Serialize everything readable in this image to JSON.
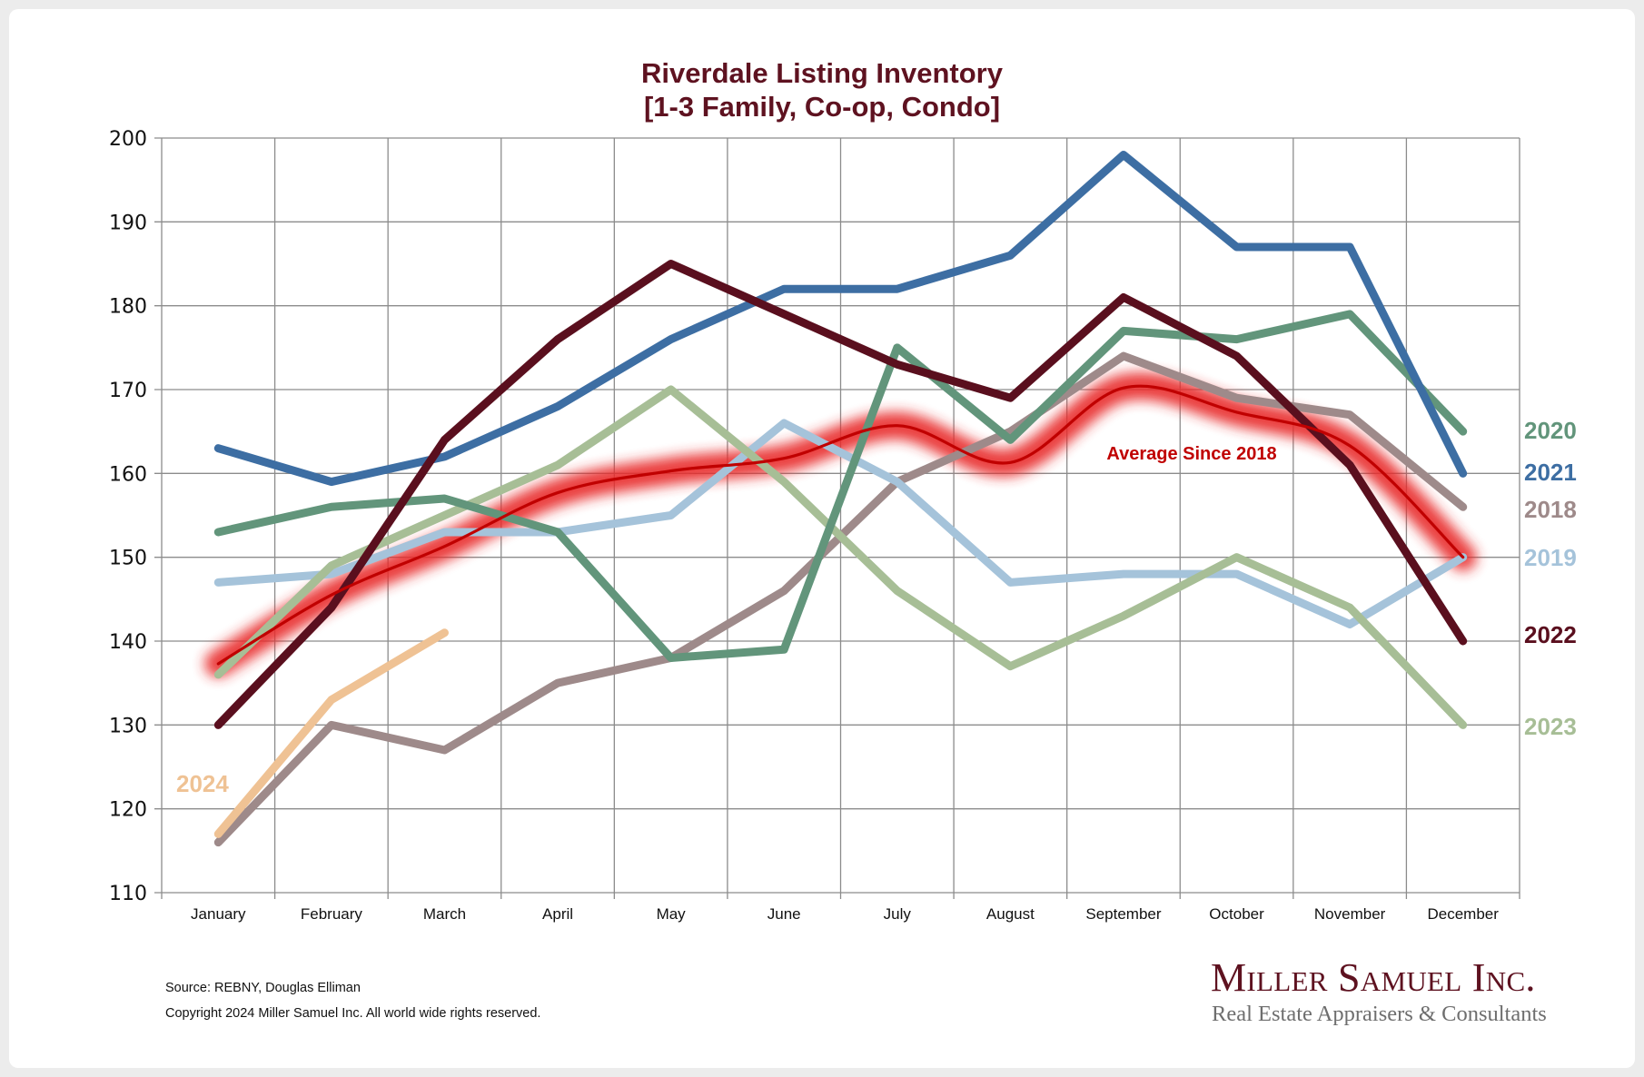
{
  "chart_data": {
    "type": "line",
    "title": "Riverdale Listing Inventory",
    "subtitle": "[1-3 Family, Co-op, Condo]",
    "xlabel": "",
    "ylabel": "",
    "ylim": [
      110,
      200
    ],
    "yticks": [
      110,
      120,
      130,
      140,
      150,
      160,
      170,
      180,
      190,
      200
    ],
    "grid": true,
    "legend": "direct labels at right end of lines",
    "categories": [
      "January",
      "February",
      "March",
      "April",
      "May",
      "June",
      "July",
      "August",
      "September",
      "October",
      "November",
      "December"
    ],
    "series": [
      {
        "name": "2018",
        "color": "#9e8a8a",
        "values": [
          116,
          130,
          127,
          135,
          138,
          146,
          159,
          165,
          174,
          169,
          167,
          156
        ]
      },
      {
        "name": "2019",
        "color": "#a5c3da",
        "values": [
          147,
          148,
          153,
          153,
          155,
          166,
          159,
          147,
          148,
          148,
          142,
          150
        ]
      },
      {
        "name": "2023",
        "color": "#a7be96",
        "values": [
          136,
          149,
          155,
          161,
          170,
          159,
          146,
          137,
          143,
          150,
          144,
          130
        ]
      },
      {
        "name": "2020",
        "color": "#62957b",
        "values": [
          153,
          156,
          157,
          153,
          138,
          139,
          175,
          164,
          177,
          176,
          179,
          165
        ]
      },
      {
        "name": "2021",
        "color": "#3d6ea3",
        "values": [
          163,
          159,
          162,
          168,
          176,
          182,
          182,
          186,
          198,
          187,
          187,
          160
        ]
      },
      {
        "name": "2022",
        "color": "#5a0f1e",
        "values": [
          130,
          144,
          164,
          176,
          185,
          179,
          173,
          169,
          181,
          174,
          161,
          140
        ]
      },
      {
        "name": "2024",
        "color": "#efc294",
        "values": [
          117,
          133,
          141
        ]
      }
    ],
    "average": {
      "name": "Average  Since 2018",
      "color": "#c00000",
      "glow_color": "#e8292b",
      "values": [
        137.3,
        145.5,
        151.3,
        157.7,
        160.3,
        161.8,
        165.7,
        161.3,
        170.2,
        167.3,
        163.3,
        150.0
      ]
    },
    "series_labels": [
      {
        "name": "2020",
        "color": "#62957b"
      },
      {
        "name": "2021",
        "color": "#3d6ea3"
      },
      {
        "name": "2018",
        "color": "#9e8a8a"
      },
      {
        "name": "2019",
        "color": "#a5c3da"
      },
      {
        "name": "2022",
        "color": "#5a0f1e"
      },
      {
        "name": "2023",
        "color": "#a7be96"
      },
      {
        "name": "2024",
        "color": "#efc294"
      }
    ]
  },
  "footer": {
    "source": "Source: REBNY, Douglas Elliman",
    "copyright": "Copyright 2024 Miller Samuel Inc.  All world wide rights reserved."
  },
  "logo": {
    "company": "Miller Samuel Inc.",
    "tagline": "Real Estate Appraisers & Consultants"
  }
}
